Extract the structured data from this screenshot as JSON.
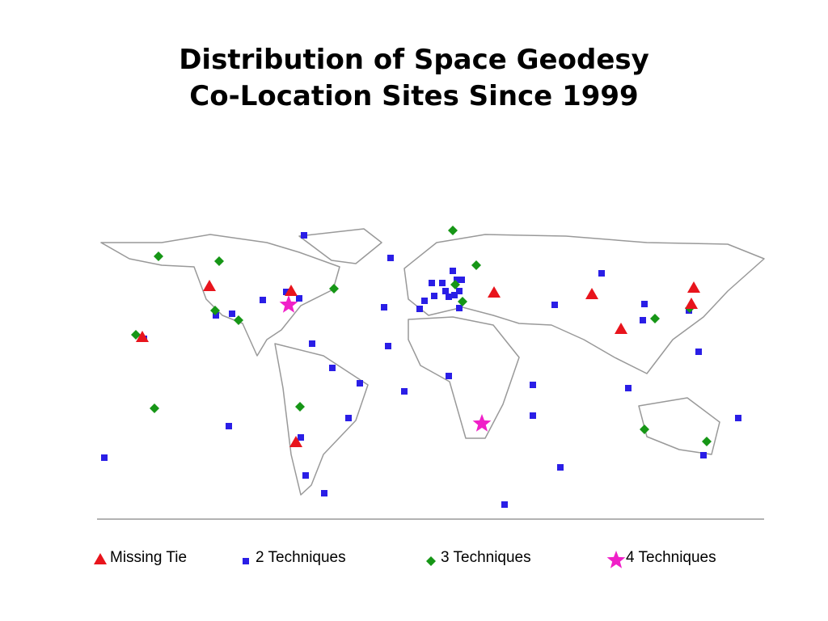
{
  "title": {
    "line1": "Distribution of Space Geodesy",
    "line2": "Co-Location Sites Since 1999"
  },
  "legend": {
    "items": [
      {
        "label": "Missing Tie"
      },
      {
        "label": "2 Techniques"
      },
      {
        "label": "3 Techniques"
      },
      {
        "label": "4 Techniques"
      }
    ]
  }
}
